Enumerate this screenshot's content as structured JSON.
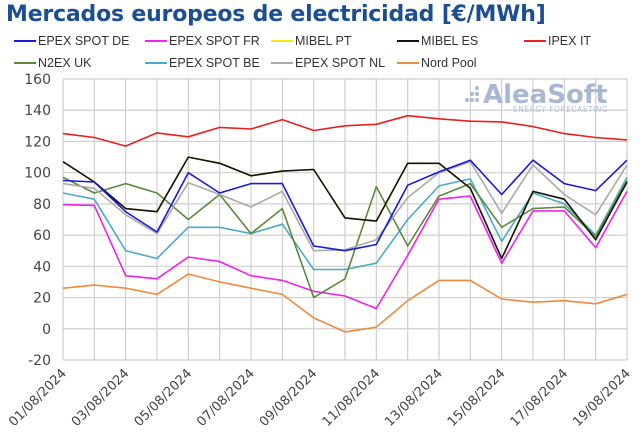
{
  "chart_data": {
    "type": "line",
    "title": "Mercados europeos de electricidad [€/MWh]",
    "xlabel": "",
    "ylabel": "",
    "ylim": [
      -20,
      160
    ],
    "yticks": [
      -20,
      0,
      20,
      40,
      60,
      80,
      100,
      120,
      140,
      160
    ],
    "grid": true,
    "legend_position": "top",
    "x": [
      "01/08/2024",
      "02/08/2024",
      "03/08/2024",
      "04/08/2024",
      "05/08/2024",
      "06/08/2024",
      "07/08/2024",
      "08/08/2024",
      "09/08/2024",
      "10/08/2024",
      "11/08/2024",
      "12/08/2024",
      "13/08/2024",
      "14/08/2024",
      "15/08/2024",
      "16/08/2024",
      "17/08/2024",
      "18/08/2024",
      "19/08/2024"
    ],
    "xtick_labels": [
      "01/08/2024",
      "03/08/2024",
      "05/08/2024",
      "07/08/2024",
      "09/08/2024",
      "11/08/2024",
      "13/08/2024",
      "15/08/2024",
      "17/08/2024",
      "19/08/2024"
    ],
    "series": [
      {
        "name": "Nord Pool",
        "color": "#f08a3c",
        "values": [
          26,
          28,
          26,
          22,
          35,
          30,
          26,
          22,
          7,
          -2,
          1,
          18,
          31,
          31,
          19,
          17,
          18,
          16,
          22
        ]
      },
      {
        "name": "EPEX SPOT FR",
        "color": "#ee22ee",
        "values": [
          79.5,
          79,
          34,
          32,
          46,
          43,
          34,
          31,
          24,
          21,
          13,
          47,
          83,
          85,
          42,
          75.5,
          75.5,
          52,
          88
        ]
      },
      {
        "name": "EPEX SPOT BE",
        "color": "#4aabc9",
        "values": [
          87,
          83,
          50,
          45,
          65,
          65,
          61,
          67,
          38,
          38,
          42,
          70,
          91.5,
          96,
          56,
          87,
          80,
          60,
          97
        ]
      },
      {
        "name": "N2EX UK",
        "color": "#5b8a3c",
        "values": [
          97,
          87,
          93,
          87,
          70,
          86,
          61,
          77,
          20,
          32,
          91,
          53,
          85,
          93,
          65,
          77,
          78,
          59,
          95
        ]
      },
      {
        "name": "EPEX SPOT NL",
        "color": "#aaaaaa",
        "values": [
          93,
          90,
          73,
          61,
          93.5,
          86,
          78,
          88,
          50,
          50.5,
          57,
          84,
          100,
          107,
          74,
          105,
          86,
          73,
          105
        ]
      },
      {
        "name": "MIBEL PT",
        "color": "#f5ea14",
        "values": [
          107,
          94,
          77,
          75,
          110,
          106,
          98,
          101,
          102,
          71,
          69,
          106,
          106,
          90,
          45,
          88,
          83,
          57,
          94
        ]
      },
      {
        "name": "MIBEL ES",
        "color": "#111111",
        "values": [
          107,
          94,
          77,
          75,
          110,
          106,
          98,
          101,
          102,
          71,
          69,
          106,
          106,
          90,
          45,
          88,
          83,
          57,
          94
        ]
      },
      {
        "name": "EPEX SPOT DE",
        "color": "#1a1adb",
        "values": [
          95,
          94,
          75,
          62,
          100,
          87,
          93,
          93,
          53,
          50,
          54,
          92,
          100.5,
          108,
          86,
          108,
          93,
          88.5,
          108
        ]
      },
      {
        "name": "IPEX IT",
        "color": "#e8201e",
        "values": [
          125,
          122.5,
          117,
          125.5,
          123,
          129,
          128,
          134,
          127,
          130,
          131,
          136.5,
          134.5,
          133,
          132.5,
          129.5,
          125,
          122.5,
          121
        ]
      }
    ]
  },
  "legend": [
    {
      "label": "EPEX SPOT DE",
      "color": "#1a1adb"
    },
    {
      "label": "EPEX SPOT FR",
      "color": "#ee22ee"
    },
    {
      "label": "MIBEL PT",
      "color": "#f5ea14"
    },
    {
      "label": "MIBEL ES",
      "color": "#111111"
    },
    {
      "label": "IPEX IT",
      "color": "#e8201e"
    },
    {
      "label": "N2EX UK",
      "color": "#5b8a3c"
    },
    {
      "label": "EPEX SPOT BE",
      "color": "#4aabc9"
    },
    {
      "label": "EPEX SPOT NL",
      "color": "#aaaaaa"
    },
    {
      "label": "Nord Pool",
      "color": "#f08a3c"
    }
  ],
  "watermark": {
    "name": "AleaSoft",
    "tagline": "ENERGY FORECASTING"
  }
}
